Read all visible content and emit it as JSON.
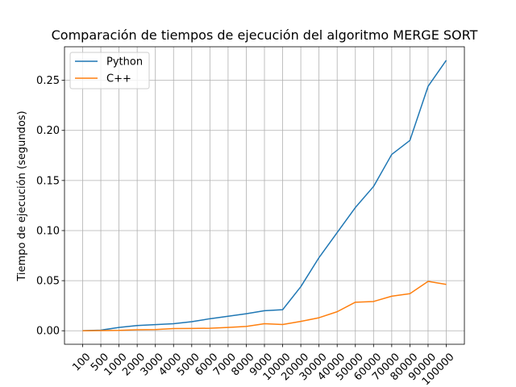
{
  "chart_data": {
    "type": "line",
    "title": "Comparación de tiempos de ejecución del algoritmo MERGE SORT",
    "xlabel": "",
    "ylabel": "Tiempo de ejecución (segundos)",
    "categories": [
      "100",
      "500",
      "1000",
      "2000",
      "3000",
      "4000",
      "5000",
      "6000",
      "7000",
      "8000",
      "9000",
      "10000",
      "20000",
      "30000",
      "40000",
      "50000",
      "60000",
      "70000",
      "80000",
      "90000",
      "100000"
    ],
    "ylim": [
      -0.0135,
      0.2835
    ],
    "yticks": [
      0.0,
      0.05,
      0.1,
      0.15,
      0.2,
      0.25
    ],
    "ytick_labels": [
      "0.00",
      "0.05",
      "0.10",
      "0.15",
      "0.20",
      "0.25"
    ],
    "grid": true,
    "legend_position": "top-left",
    "series": [
      {
        "name": "Python",
        "color": "#1f77b4",
        "values": [
          0.0001,
          0.0006,
          0.0033,
          0.0052,
          0.0061,
          0.007,
          0.009,
          0.012,
          0.0145,
          0.017,
          0.02,
          0.021,
          0.044,
          0.073,
          0.098,
          0.123,
          0.144,
          0.176,
          0.19,
          0.244,
          0.27
        ]
      },
      {
        "name": "C++",
        "color": "#ff7f0e",
        "values": [
          0.0,
          0.0002,
          0.0004,
          0.001,
          0.0012,
          0.0022,
          0.0023,
          0.0025,
          0.0033,
          0.0043,
          0.007,
          0.0062,
          0.0093,
          0.013,
          0.019,
          0.0285,
          0.0292,
          0.0345,
          0.037,
          0.0493,
          0.0463
        ]
      }
    ]
  }
}
